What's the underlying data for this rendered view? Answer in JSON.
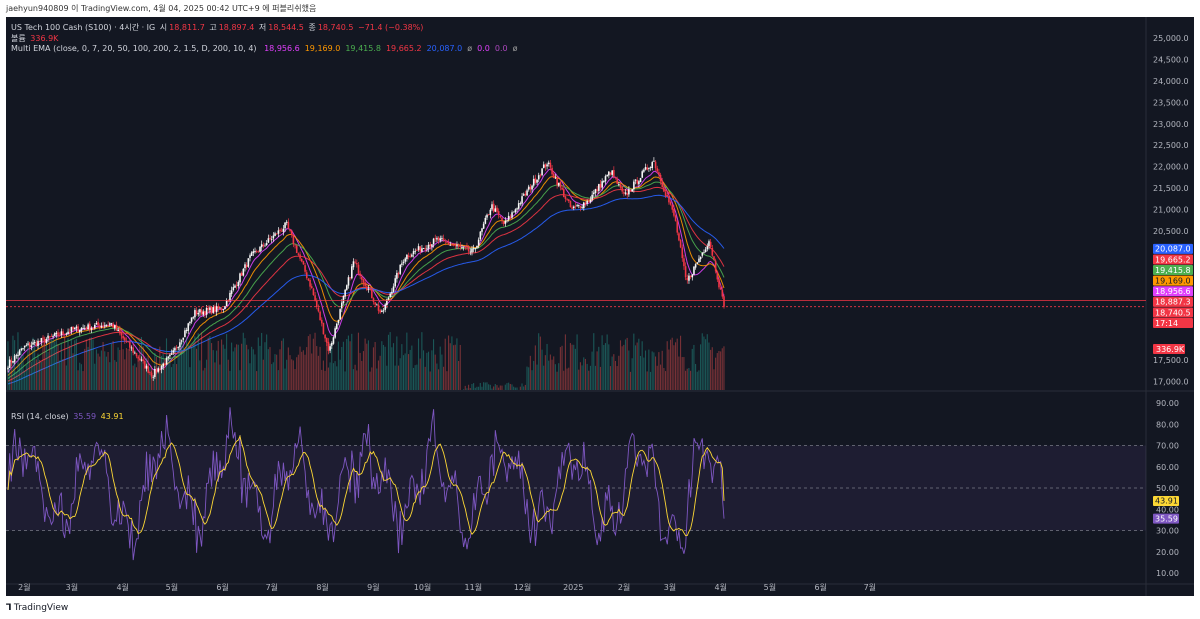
{
  "top_line": "jaehyun940809 이 TradingView.com, 4월 04, 2025 00:42 UTC+9 에 퍼블리쉬했음",
  "footer": {
    "logo_text": "TradingView"
  },
  "legend": {
    "title": "US Tech 100 Cash (S100) · 4시간 · IG",
    "ohlc": [
      {
        "label": "시",
        "value": "18,811.7"
      },
      {
        "label": "고",
        "value": "18,897.4"
      },
      {
        "label": "저",
        "value": "18,544.5"
      },
      {
        "label": "종",
        "value": "18,740.5"
      }
    ],
    "change": "−71.4 (−0.38%)",
    "volume_label": "볼륨",
    "volume_value": "336.9K",
    "ema_label": "Multi EMA (close, 0, 7, 20, 50, 100, 200, 2, 1.5, D, 200, 10, 4)",
    "ema_values": [
      {
        "value": "18,956.6",
        "color": "#e040fb"
      },
      {
        "value": "19,169.0",
        "color": "#ff9800"
      },
      {
        "value": "19,415.8",
        "color": "#4caf50"
      },
      {
        "value": "19,665.2",
        "color": "#f23645"
      },
      {
        "value": "20,087.0",
        "color": "#2962ff"
      },
      {
        "value": "ø",
        "color": "#9e9e9e"
      },
      {
        "value": "0.0",
        "color": "#e040fb"
      },
      {
        "value": "0.0",
        "color": "#ab47bc"
      },
      {
        "value": "ø",
        "color": "#9e9e9e"
      }
    ],
    "rsi_label": "RSI (14, close)",
    "rsi_values": [
      {
        "value": "35.59",
        "color": "#7e57c2"
      },
      {
        "value": "43.91",
        "color": "#fdd835"
      }
    ]
  },
  "colors": {
    "background": "#131722",
    "up": "#f7f7f7",
    "down": "#f23645",
    "grid": "#1e222d",
    "axis_text": "#b2b5be"
  },
  "chart_data": [
    {
      "type": "candlestick",
      "y_axis_labels": [
        "25,000.0",
        "24,500.0",
        "24,000.0",
        "23,500.0",
        "23,000.0",
        "22,500.0",
        "22,000.0",
        "21,500.0",
        "21,000.0",
        "20,500.0",
        "17,500.0",
        "17,000.0"
      ],
      "x_axis_labels": [
        "2월",
        "3월",
        "4월",
        "5월",
        "6월",
        "7월",
        "8월",
        "9월",
        "10월",
        "11월",
        "12월",
        "2025",
        "2월",
        "3월",
        "4월",
        "5월",
        "6월",
        "7월"
      ],
      "ylim": [
        16800,
        25300
      ],
      "close_path": [
        {
          "x": "2024-01-22",
          "y": 17400
        },
        {
          "x": "2024-02-01",
          "y": 17800
        },
        {
          "x": "2024-03-01",
          "y": 18200
        },
        {
          "x": "2024-03-25",
          "y": 18350
        },
        {
          "x": "2024-04-19",
          "y": 17150
        },
        {
          "x": "2024-05-01",
          "y": 17600
        },
        {
          "x": "2024-05-15",
          "y": 18600
        },
        {
          "x": "2024-06-01",
          "y": 18700
        },
        {
          "x": "2024-06-18",
          "y": 19900
        },
        {
          "x": "2024-07-10",
          "y": 20650
        },
        {
          "x": "2024-07-25",
          "y": 19200
        },
        {
          "x": "2024-08-05",
          "y": 17700
        },
        {
          "x": "2024-08-20",
          "y": 19800
        },
        {
          "x": "2024-09-06",
          "y": 18550
        },
        {
          "x": "2024-09-20",
          "y": 19900
        },
        {
          "x": "2024-10-10",
          "y": 20300
        },
        {
          "x": "2024-11-01",
          "y": 20000
        },
        {
          "x": "2024-11-12",
          "y": 21100
        },
        {
          "x": "2024-11-20",
          "y": 20650
        },
        {
          "x": "2024-12-16",
          "y": 22100
        },
        {
          "x": "2024-12-31",
          "y": 21000
        },
        {
          "x": "2025-01-10",
          "y": 21200
        },
        {
          "x": "2025-01-24",
          "y": 21900
        },
        {
          "x": "2025-02-01",
          "y": 21300
        },
        {
          "x": "2025-02-19",
          "y": 22150
        },
        {
          "x": "2025-03-04",
          "y": 20800
        },
        {
          "x": "2025-03-11",
          "y": 19300
        },
        {
          "x": "2025-03-25",
          "y": 20300
        },
        {
          "x": "2025-04-03",
          "y": 18740.5
        }
      ],
      "series": [
        {
          "name": "EMA 20",
          "color": "#e040fb",
          "last": 18956.6
        },
        {
          "name": "EMA 50",
          "color": "#ff9800",
          "last": 19169.0
        },
        {
          "name": "EMA 100",
          "color": "#4caf50",
          "last": 19415.8
        },
        {
          "name": "EMA 200",
          "color": "#f23645",
          "last": 19665.2
        },
        {
          "name": "EMA Daily 200",
          "color": "#2962ff",
          "last": 20087.0
        }
      ],
      "price_tags": [
        {
          "text": "20,087.0",
          "value": 20087.0,
          "color": "#2962ff"
        },
        {
          "text": "19,665.2",
          "value": 19665.2,
          "color": "#f23645"
        },
        {
          "text": "19,415.8",
          "value": 19415.8,
          "color": "#4caf50"
        },
        {
          "text": "19,169.0",
          "value": 19169.0,
          "color": "#ff9800"
        },
        {
          "text": "18,956.6",
          "value": 18956.6,
          "color": "#e040fb"
        },
        {
          "text": "18,887.3",
          "value": 18887.3,
          "color": "#f23645"
        },
        {
          "text": "18,740.5",
          "value": 18740.5,
          "color": "#f23645"
        },
        {
          "text": "17:14",
          "value": 18740.5,
          "color": "#f23645"
        }
      ],
      "volume_tag": "336.9K"
    },
    {
      "type": "line",
      "indicator": "RSI (14, close)",
      "y_axis_labels": [
        "90.00",
        "80.00",
        "70.00",
        "60.00",
        "50.00",
        "40.00",
        "30.00",
        "20.00",
        "10.00"
      ],
      "ylim": [
        5,
        95
      ],
      "bands": [
        30,
        50,
        70
      ],
      "series": [
        {
          "name": "RSI",
          "color": "#7e57c2",
          "last": 35.59
        },
        {
          "name": "RSI MA",
          "color": "#fdd835",
          "last": 43.91
        }
      ]
    }
  ]
}
